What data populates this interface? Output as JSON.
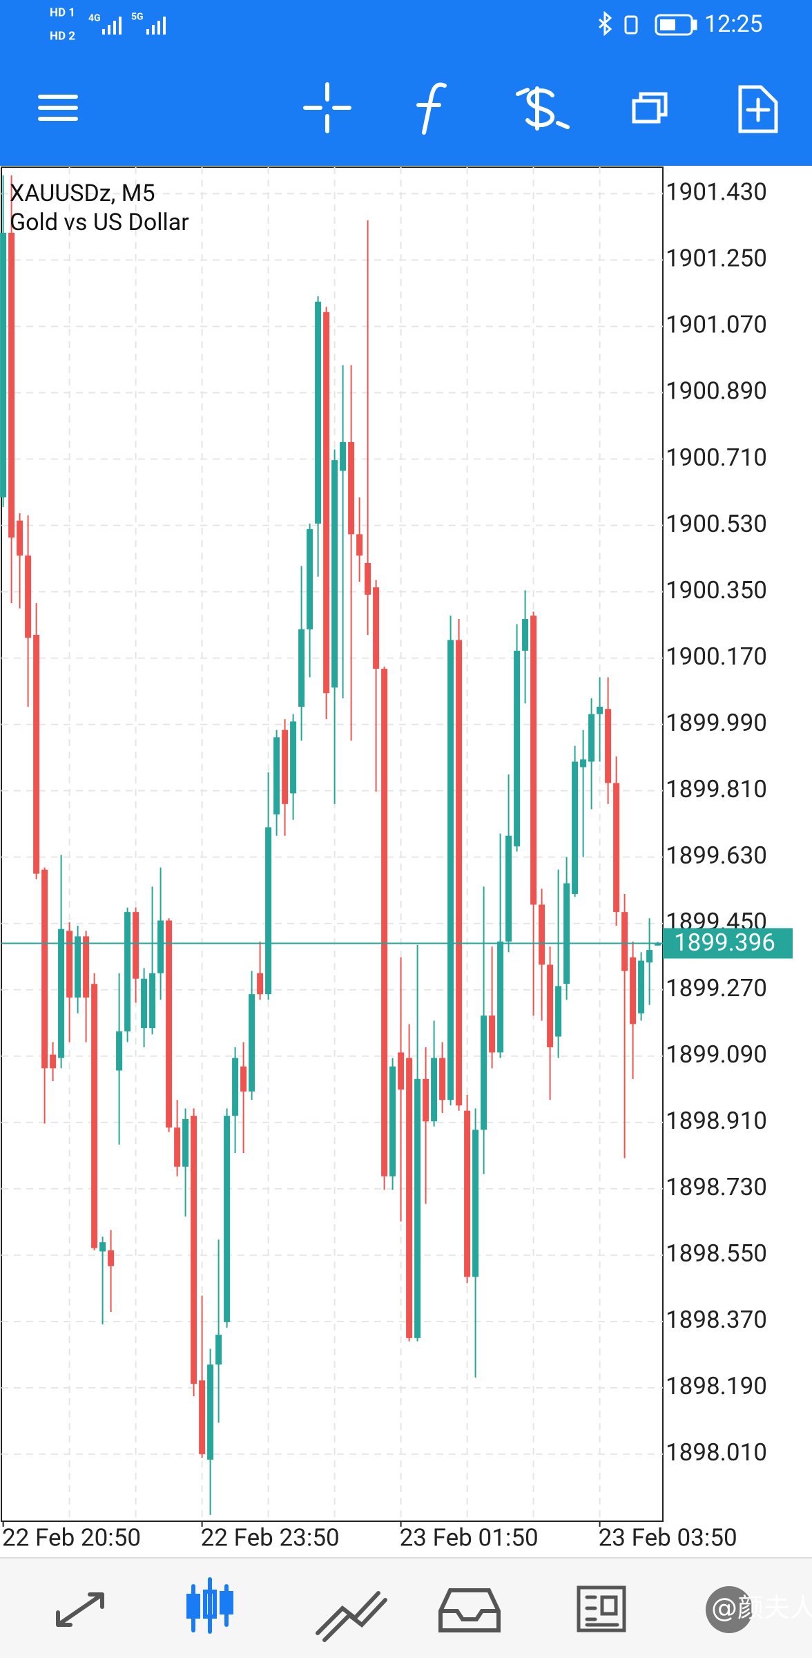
{
  "status_bar": {
    "time": "12:25",
    "sim": [
      "HD 1",
      "HD 2"
    ],
    "network": [
      "4G",
      "5G"
    ]
  },
  "chart_data": {
    "type": "candlestick",
    "title": "XAUUSDz, M5",
    "subtitle": "Gold vs US Dollar",
    "categories": [
      "22 Feb 20:50",
      null,
      null,
      null,
      null,
      null,
      null,
      null,
      null,
      null,
      null,
      null,
      null,
      null,
      null,
      null,
      null,
      null,
      null,
      null,
      null,
      null,
      null,
      null,
      "22 Feb 23:50",
      null,
      null,
      null,
      null,
      null,
      null,
      null,
      null,
      null,
      null,
      null,
      null,
      null,
      null,
      null,
      null,
      null,
      null,
      null,
      null,
      null,
      null,
      null,
      "23 Feb 01:50",
      null,
      null,
      null,
      null,
      null,
      null,
      null,
      null,
      null,
      null,
      null,
      null,
      null,
      null,
      null,
      null,
      null,
      null,
      null,
      null,
      null,
      null,
      null,
      "23 Feb 03:50",
      null,
      null,
      null,
      null,
      null,
      null,
      null
    ],
    "open": [
      1900.606,
      1901.324,
      1900.543,
      1900.448,
      1900.233,
      1899.596,
      1899.094,
      1899.085,
      1899.43,
      1899.249,
      1899.415,
      1899.286,
      1898.56,
      1898.563,
      1899.051,
      1899.157,
      1899.481,
      1899.166,
      1899.166,
      1899.315,
      1899.458,
      1898.896,
      1898.79,
      1898.928,
      1898.21,
      1897.995,
      1898.253,
      1898.368,
      1898.928,
      1899.062,
      1898.994,
      1899.315,
      1899.258,
      1899.746,
      1899.975,
      1899.803,
      1900.038,
      1900.248,
      1900.535,
      1901.109,
      1900.09,
      1900.678,
      1900.756,
      1900.506,
      1900.428,
      1900.362,
      1900.141,
      1898.764,
      1899.1,
      1899.085,
      1898.325,
      1899.028,
      1898.913,
      1899.085,
      1898.971,
      1900.219,
      1898.942,
      1898.491,
      1898.89,
      1899.2,
      1899.1,
      1899.401,
      1899.659,
      1900.19,
      1900.285,
      1899.501,
      1899.338,
      1899.143,
      1899.286,
      1899.53,
      1899.874,
      1899.889,
      1900.018,
      1900.032,
      1899.831,
      1899.481,
      1899.358,
      1899.206,
      1899.344,
      1899.39
    ],
    "high": [
      1901.48,
      1901.48,
      1900.563,
      1900.557,
      1900.319,
      1899.602,
      1899.128,
      1899.636,
      1899.453,
      1899.444,
      1899.43,
      1899.315,
      1898.6,
      1898.618,
      1899.315,
      1899.493,
      1899.493,
      1899.329,
      1899.55,
      1899.602,
      1899.464,
      1898.971,
      1898.948,
      1898.948,
      1898.44,
      1898.296,
      1898.592,
      1898.948,
      1899.114,
      1899.128,
      1899.321,
      1899.401,
      1899.86,
      1899.975,
      1900.004,
      1900.018,
      1900.42,
      1900.535,
      1901.152,
      1901.123,
      1900.736,
      1900.965,
      1900.965,
      1900.606,
      1901.358,
      1900.382,
      1900.147,
      1899.085,
      1899.358,
      1899.177,
      1899.392,
      1899.114,
      1899.186,
      1899.128,
      1900.285,
      1900.276,
      1898.985,
      1898.948,
      1899.55,
      1899.387,
      1899.694,
      1899.854,
      1900.262,
      1900.354,
      1900.296,
      1899.544,
      1899.387,
      1899.596,
      1899.63,
      1899.932,
      1899.975,
      1900.061,
      1900.118,
      1900.118,
      1899.903,
      1899.53,
      1899.401,
      1899.372,
      1899.464,
      1899.4
    ],
    "low": [
      1900.58,
      1900.319,
      1900.305,
      1900.038,
      1899.57,
      1898.907,
      1899.022,
      1899.057,
      1899.128,
      1899.206,
      1899.128,
      1898.563,
      1898.362,
      1898.396,
      1898.85,
      1899.128,
      1899.235,
      1899.114,
      1899.149,
      1899.243,
      1898.884,
      1898.764,
      1898.655,
      1898.167,
      1898.0,
      1897.845,
      1898.095,
      1898.353,
      1898.827,
      1898.827,
      1898.971,
      1899.243,
      1899.243,
      1899.688,
      1899.688,
      1899.731,
      1899.946,
      1900.118,
      1900.391,
      1900.004,
      1899.774,
      1900.061,
      1899.946,
      1900.377,
      1900.233,
      1899.808,
      1898.727,
      1898.727,
      1898.641,
      1898.316,
      1898.316,
      1898.689,
      1898.899,
      1898.936,
      1898.956,
      1898.942,
      1898.474,
      1898.218,
      1898.77,
      1899.057,
      1899.085,
      1899.372,
      1899.645,
      1900.047,
      1899.2,
      1899.186,
      1898.971,
      1899.085,
      1899.243,
      1899.522,
      1899.63,
      1899.76,
      1899.889,
      1899.774,
      1899.444,
      1898.813,
      1899.028,
      1899.186,
      1899.229,
      1899.39
    ],
    "close": [
      1901.324,
      1900.497,
      1900.448,
      1900.225,
      1899.585,
      1899.057,
      1899.057,
      1899.435,
      1899.249,
      1899.415,
      1899.249,
      1898.569,
      1898.585,
      1898.52,
      1899.157,
      1899.481,
      1899.3,
      1899.3,
      1899.315,
      1899.458,
      1898.896,
      1898.79,
      1898.919,
      1898.201,
      1898.01,
      1898.253,
      1898.334,
      1898.928,
      1899.085,
      1898.994,
      1899.258,
      1899.258,
      1899.711,
      1899.955,
      1899.774,
      1899.998,
      1900.248,
      1900.52,
      1901.137,
      1900.075,
      1900.707,
      1900.756,
      1900.506,
      1900.448,
      1900.342,
      1900.141,
      1898.764,
      1899.062,
      1898.999,
      1898.325,
      1899.028,
      1898.913,
      1899.085,
      1898.971,
      1900.219,
      1898.956,
      1898.491,
      1898.89,
      1899.2,
      1899.1,
      1899.401,
      1899.688,
      1900.19,
      1900.276,
      1899.501,
      1899.338,
      1899.114,
      1899.28,
      1899.559,
      1899.889,
      1899.895,
      1900.018,
      1900.038,
      1899.831,
      1899.481,
      1899.321,
      1899.177,
      1899.349,
      1899.378,
      1899.396
    ],
    "up_color": "#26a69a",
    "down_color": "#ef5350",
    "current_price": 1899.396,
    "current_price_color": "#26a69a",
    "ylim": [
      1897.828,
      1901.502
    ],
    "yticks": [
      {
        "value": 1901.43,
        "label": "1901.430"
      },
      {
        "value": 1901.25,
        "label": "1901.250"
      },
      {
        "value": 1901.07,
        "label": "1901.070"
      },
      {
        "value": 1900.89,
        "label": "1900.890"
      },
      {
        "value": 1900.71,
        "label": "1900.710"
      },
      {
        "value": 1900.53,
        "label": "1900.530"
      },
      {
        "value": 1900.35,
        "label": "1900.350"
      },
      {
        "value": 1900.17,
        "label": "1900.170"
      },
      {
        "value": 1899.99,
        "label": "1899.990"
      },
      {
        "value": 1899.81,
        "label": "1899.810"
      },
      {
        "value": 1899.63,
        "label": "1899.630"
      },
      {
        "value": 1899.45,
        "label": "1899.450"
      },
      {
        "value": 1899.27,
        "label": "1899.270"
      },
      {
        "value": 1899.09,
        "label": "1899.090"
      },
      {
        "value": 1898.91,
        "label": "1898.910"
      },
      {
        "value": 1898.73,
        "label": "1898.730"
      },
      {
        "value": 1898.55,
        "label": "1898.550"
      },
      {
        "value": 1898.37,
        "label": "1898.370"
      },
      {
        "value": 1898.19,
        "label": "1898.190"
      },
      {
        "value": 1898.01,
        "label": "1898.010"
      }
    ],
    "grid": true
  },
  "watermark": "@颜夫人"
}
